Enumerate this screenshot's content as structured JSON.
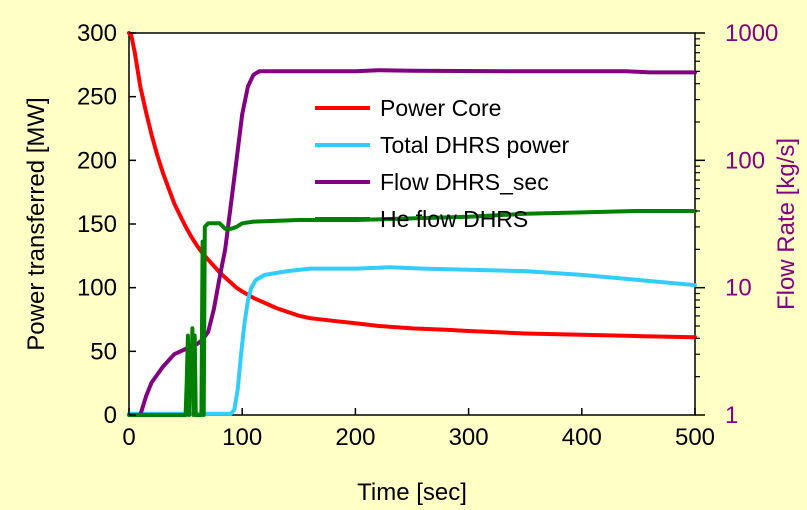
{
  "chart_data": {
    "type": "line",
    "xlabel": "Time [sec]",
    "ylabel": "Power transferred [MW]",
    "y2label": "Flow Rate  [kg/s]",
    "xlim": [
      0,
      500
    ],
    "ylim": [
      0,
      300
    ],
    "y2lim": [
      1,
      1000
    ],
    "y2scale": "log",
    "x_ticks": [
      "0",
      "100",
      "200",
      "300",
      "400",
      "500"
    ],
    "y_ticks": [
      "0",
      "50",
      "100",
      "150",
      "200",
      "250",
      "300"
    ],
    "y2_ticks": [
      "1",
      "10",
      "100",
      "1000"
    ],
    "grid": false,
    "legend_position": "top-center",
    "series": [
      {
        "name": "Power Core",
        "axis": "left",
        "color": "#ff0000",
        "points": [
          [
            0,
            300
          ],
          [
            2,
            298
          ],
          [
            5,
            285
          ],
          [
            10,
            258
          ],
          [
            15,
            238
          ],
          [
            20,
            220
          ],
          [
            25,
            204
          ],
          [
            30,
            190
          ],
          [
            35,
            178
          ],
          [
            40,
            166
          ],
          [
            45,
            157
          ],
          [
            50,
            148
          ],
          [
            55,
            140
          ],
          [
            60,
            133
          ],
          [
            65,
            127
          ],
          [
            70,
            122
          ],
          [
            75,
            117
          ],
          [
            80,
            112
          ],
          [
            85,
            108
          ],
          [
            90,
            104
          ],
          [
            95,
            100
          ],
          [
            100,
            97
          ],
          [
            110,
            92
          ],
          [
            120,
            88
          ],
          [
            130,
            84
          ],
          [
            140,
            81
          ],
          [
            150,
            78
          ],
          [
            160,
            76
          ],
          [
            180,
            74
          ],
          [
            200,
            72
          ],
          [
            220,
            70
          ],
          [
            250,
            68
          ],
          [
            280,
            67
          ],
          [
            300,
            66
          ],
          [
            350,
            64
          ],
          [
            400,
            63
          ],
          [
            450,
            62
          ],
          [
            500,
            61
          ]
        ]
      },
      {
        "name": "Total DHRS power",
        "axis": "left",
        "color": "#33ccff",
        "points": [
          [
            0,
            1
          ],
          [
            85,
            1
          ],
          [
            90,
            1
          ],
          [
            93,
            4
          ],
          [
            96,
            20
          ],
          [
            99,
            48
          ],
          [
            102,
            72
          ],
          [
            105,
            90
          ],
          [
            108,
            100
          ],
          [
            112,
            106
          ],
          [
            120,
            110
          ],
          [
            140,
            113
          ],
          [
            160,
            115
          ],
          [
            200,
            115
          ],
          [
            230,
            116
          ],
          [
            260,
            115
          ],
          [
            300,
            114
          ],
          [
            350,
            113
          ],
          [
            400,
            110
          ],
          [
            450,
            106
          ],
          [
            500,
            102
          ]
        ]
      },
      {
        "name": "Flow DHRS_sec",
        "axis": "right",
        "color": "#800080",
        "points": [
          [
            10,
            1
          ],
          [
            15,
            1.4
          ],
          [
            20,
            1.8
          ],
          [
            30,
            2.4
          ],
          [
            40,
            3.0
          ],
          [
            50,
            3.3
          ],
          [
            60,
            3.6
          ],
          [
            65,
            3.9
          ],
          [
            70,
            4.5
          ],
          [
            75,
            6.8
          ],
          [
            80,
            12
          ],
          [
            85,
            20
          ],
          [
            90,
            45
          ],
          [
            95,
            100
          ],
          [
            100,
            230
          ],
          [
            105,
            380
          ],
          [
            110,
            470
          ],
          [
            115,
            500
          ],
          [
            200,
            500
          ],
          [
            220,
            510
          ],
          [
            250,
            505
          ],
          [
            350,
            500
          ],
          [
            440,
            500
          ],
          [
            460,
            490
          ],
          [
            500,
            490
          ]
        ]
      },
      {
        "name": "He flow DHRS",
        "axis": "right",
        "color": "#008000",
        "points": [
          [
            0,
            1
          ],
          [
            50,
            1
          ],
          [
            51,
            1.8
          ],
          [
            52,
            4.2
          ],
          [
            53,
            1
          ],
          [
            54,
            3.5
          ],
          [
            55,
            1.5
          ],
          [
            56,
            4.8
          ],
          [
            57,
            1
          ],
          [
            58,
            4.2
          ],
          [
            59,
            1
          ],
          [
            60,
            1
          ],
          [
            64,
            1
          ],
          [
            65,
            23
          ],
          [
            66,
            1
          ],
          [
            67,
            30
          ],
          [
            70,
            32
          ],
          [
            75,
            32
          ],
          [
            80,
            32
          ],
          [
            85,
            29
          ],
          [
            90,
            29
          ],
          [
            95,
            30
          ],
          [
            100,
            32
          ],
          [
            110,
            33
          ],
          [
            150,
            34
          ],
          [
            200,
            34
          ],
          [
            250,
            35
          ],
          [
            300,
            36
          ],
          [
            350,
            38
          ],
          [
            400,
            39
          ],
          [
            450,
            40
          ],
          [
            500,
            40
          ]
        ]
      }
    ]
  }
}
